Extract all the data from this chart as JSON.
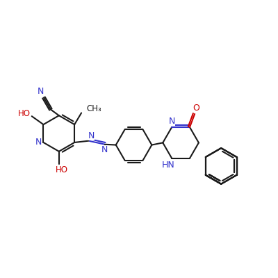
{
  "bg_color": "#ffffff",
  "bond_color": "#1a1a1a",
  "n_color": "#3333cc",
  "o_color": "#cc0000",
  "lw": 1.5,
  "figsize": [
    4.0,
    4.0
  ],
  "dpi": 100,
  "xlim": [
    0,
    10
  ],
  "ylim": [
    2,
    8
  ],
  "ring_r": 0.65,
  "texts": {
    "N_pyr": "N",
    "HO_top": "HO",
    "N_cn": "N",
    "CH3": "CH₃",
    "HO_bot": "HO",
    "N_azo1": "N",
    "N_azo2": "N",
    "N3_quin": "N",
    "HN_quin": "HN",
    "O_quin": "O"
  }
}
